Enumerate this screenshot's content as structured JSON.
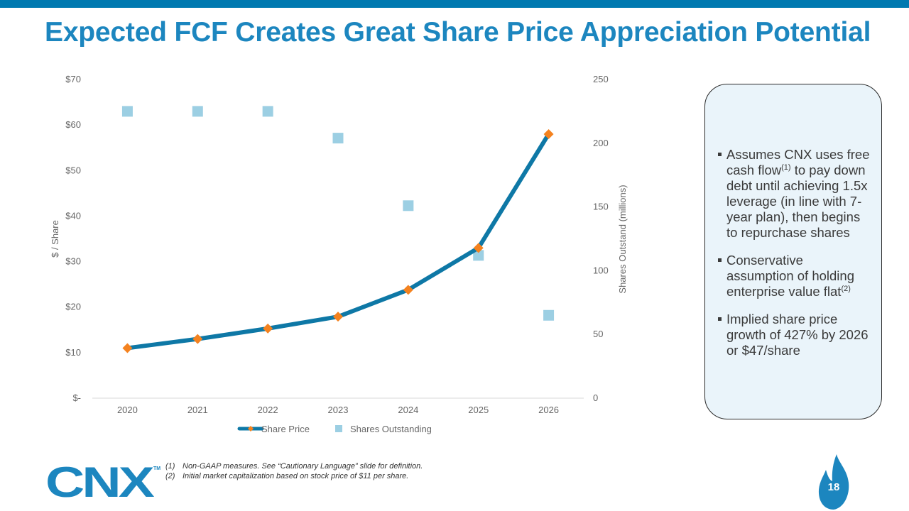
{
  "title": "Expected FCF Creates Great Share Price Appreciation Potential",
  "chart_data": {
    "type": "line",
    "categories": [
      "2020",
      "2021",
      "2022",
      "2023",
      "2024",
      "2025",
      "2026"
    ],
    "series": [
      {
        "name": "Share Price",
        "type": "line",
        "axis": "left",
        "color": "#0e78a6",
        "marker_color": "#f4821f",
        "values": [
          11,
          13,
          15.3,
          17.9,
          23.8,
          33,
          58
        ]
      },
      {
        "name": "Shares Outstanding",
        "type": "scatter",
        "axis": "right",
        "color": "#9ccfe3",
        "values": [
          225,
          225,
          225,
          204,
          151,
          112,
          65
        ]
      }
    ],
    "y_left": {
      "label": "$ / Share",
      "ylim": [
        0,
        70
      ],
      "ticks": [
        0,
        10,
        20,
        30,
        40,
        50,
        60,
        70
      ],
      "tick_labels": [
        "$-",
        "$10",
        "$20",
        "$30",
        "$40",
        "$50",
        "$60",
        "$70"
      ]
    },
    "y_right": {
      "label": "Shares Outstand (millions)",
      "ylim": [
        0,
        250
      ],
      "ticks": [
        0,
        50,
        100,
        150,
        200,
        250
      ],
      "tick_labels": [
        "0",
        "50",
        "100",
        "150",
        "200",
        "250"
      ]
    },
    "legend": [
      "Share Price",
      "Shares Outstanding"
    ],
    "legend_position": "bottom"
  },
  "callout": {
    "bullets": [
      {
        "text_before": "Assumes CNX uses free cash flow",
        "sup": "(1)",
        "text_after": " to pay down debt until achieving 1.5x leverage (in line with 7-year plan), then begins to repurchase shares"
      },
      {
        "text_before": "Conservative assumption of holding enterprise value flat",
        "sup": "(2)",
        "text_after": ""
      },
      {
        "text_before": "Implied share price growth of 427% by 2026 or $47/share",
        "sup": "",
        "text_after": ""
      }
    ]
  },
  "footnotes": [
    {
      "num": "(1)",
      "text": "Non-GAAP measures. See “Cautionary Language” slide for definition."
    },
    {
      "num": "(2)",
      "text": "Initial market capitalization based on stock price of $11 per share."
    }
  ],
  "logo": {
    "text": "CNX",
    "tm": "TM",
    "color": "#1c86bf"
  },
  "page_number": "18",
  "colors": {
    "accent": "#1c86bf",
    "top_bar": "#0079b0",
    "flame": "#1c86bf"
  }
}
